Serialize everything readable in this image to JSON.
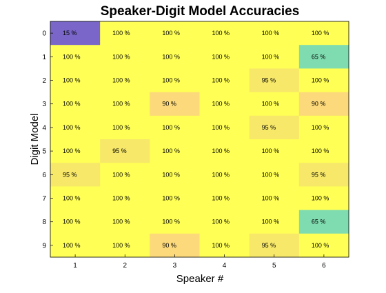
{
  "chart_data": {
    "type": "heatmap",
    "title": "Speaker-Digit Model Accuracies",
    "xlabel": "Speaker #",
    "ylabel": "Digit Model",
    "x_categories": [
      "1",
      "2",
      "3",
      "4",
      "5",
      "6"
    ],
    "y_categories": [
      "0",
      "1",
      "2",
      "3",
      "4",
      "5",
      "6",
      "7",
      "8",
      "9"
    ],
    "values": [
      [
        15,
        100,
        100,
        100,
        100,
        100
      ],
      [
        100,
        100,
        100,
        100,
        100,
        65
      ],
      [
        100,
        100,
        100,
        100,
        95,
        100
      ],
      [
        100,
        100,
        90,
        100,
        100,
        90
      ],
      [
        100,
        100,
        100,
        100,
        95,
        100
      ],
      [
        100,
        95,
        100,
        100,
        100,
        100
      ],
      [
        95,
        100,
        100,
        100,
        100,
        95
      ],
      [
        100,
        100,
        100,
        100,
        100,
        100
      ],
      [
        100,
        100,
        100,
        100,
        100,
        65
      ],
      [
        100,
        100,
        90,
        100,
        95,
        100
      ]
    ],
    "value_suffix": " %",
    "colormap": {
      "15": "#7966c8",
      "65": "#7fdcb0",
      "90": "#fcd97a",
      "95": "#f7e86a",
      "100": "#ffff55"
    },
    "grid": false
  }
}
